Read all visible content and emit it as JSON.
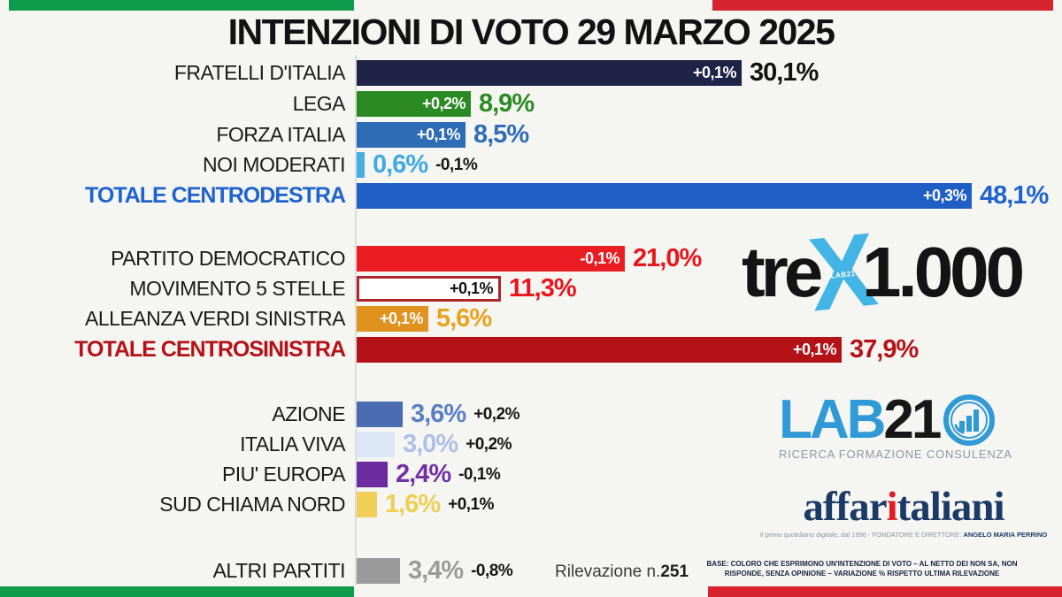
{
  "chart_data": {
    "type": "bar",
    "orientation": "horizontal",
    "unit": "%",
    "title": "INTENZIONI DI VOTO 29 MARZO 2025",
    "rows": [
      {
        "label": "FRATELLI D'ITALIA",
        "value": 30.1,
        "value_label": "30,1%",
        "delta_label": "+0,1%",
        "delta_position": "inside",
        "bar_color": "#1e2347",
        "value_color": "#121212",
        "label_color": "#1a1a1a",
        "delta_color": "#ffffff",
        "group": "centrodestra"
      },
      {
        "label": "LEGA",
        "value": 8.9,
        "value_label": "8,9%",
        "delta_label": "+0,2%",
        "delta_position": "inside",
        "bar_color": "#2b8a24",
        "value_color": "#2b8a24",
        "label_color": "#1a1a1a",
        "delta_color": "#ffffff",
        "group": "centrodestra"
      },
      {
        "label": "FORZA ITALIA",
        "value": 8.5,
        "value_label": "8,5%",
        "delta_label": "+0,1%",
        "delta_position": "inside",
        "bar_color": "#2e6db6",
        "value_color": "#2e6db6",
        "label_color": "#1a1a1a",
        "delta_color": "#ffffff",
        "group": "centrodestra"
      },
      {
        "label": "NOI MODERATI",
        "value": 0.6,
        "value_label": "0,6%",
        "delta_label": "-0,1%",
        "delta_position": "outside",
        "bar_color": "#45afe4",
        "value_color": "#3fa9e1",
        "label_color": "#1a1a1a",
        "delta_color": "#161616",
        "group": "centrodestra"
      },
      {
        "label": "TOTALE CENTRODESTRA",
        "value": 48.1,
        "value_label": "48,1%",
        "delta_label": "+0,3%",
        "delta_position": "inside",
        "bar_color": "#1f5fc5",
        "value_color": "#1f64cc",
        "label_color": "#1f64cc",
        "delta_color": "#ffffff",
        "group": "totale"
      },
      {
        "label": "PARTITO DEMOCRATICO",
        "value": 21.0,
        "value_label": "21,0%",
        "delta_label": "-0,1%",
        "delta_position": "inside",
        "bar_color": "#ec1c23",
        "value_color": "#e8151c",
        "label_color": "#1a1a1a",
        "delta_color": "#ffffff",
        "group": "centrosinistra"
      },
      {
        "label": "MOVIMENTO 5 STELLE",
        "value": 11.3,
        "value_label": "11,3%",
        "delta_label": "+0,1%",
        "delta_position": "inside",
        "bar_color": "#ffffff",
        "outline": "#b0242b",
        "value_color": "#e8151c",
        "label_color": "#1a1a1a",
        "delta_color": "#121212",
        "group": "centrosinistra"
      },
      {
        "label": "ALLEANZA VERDI SINISTRA",
        "value": 5.6,
        "value_label": "5,6%",
        "delta_label": "+0,1%",
        "delta_position": "inside",
        "bar_color": "#e0921e",
        "value_color": "#e8a31f",
        "label_color": "#1a1a1a",
        "delta_color": "#ffffff",
        "group": "centrosinistra"
      },
      {
        "label": "TOTALE CENTROSINISTRA",
        "value": 37.9,
        "value_label": "37,9%",
        "delta_label": "+0,1%",
        "delta_position": "inside",
        "bar_color": "#b51218",
        "value_color": "#b51218",
        "label_color": "#b51218",
        "delta_color": "#ffffff",
        "group": "totale"
      },
      {
        "label": "AZIONE",
        "value": 3.6,
        "value_label": "3,6%",
        "delta_label": "+0,2%",
        "delta_position": "outside",
        "bar_color": "#4a6cb3",
        "value_color": "#5b7fc4",
        "label_color": "#1a1a1a",
        "delta_color": "#161616",
        "group": "altri"
      },
      {
        "label": "ITALIA VIVA",
        "value": 3.0,
        "value_label": "3,0%",
        "delta_label": "+0,2%",
        "delta_position": "outside",
        "bar_color": "#dbe7f6",
        "value_color": "#aebfe8",
        "label_color": "#1a1a1a",
        "delta_color": "#161616",
        "group": "altri"
      },
      {
        "label": "PIU' EUROPA",
        "value": 2.4,
        "value_label": "2,4%",
        "delta_label": "-0,1%",
        "delta_position": "outside",
        "bar_color": "#6b2a9e",
        "value_color": "#7231a5",
        "label_color": "#1a1a1a",
        "delta_color": "#161616",
        "group": "altri"
      },
      {
        "label": "SUD CHIAMA NORD",
        "value": 1.6,
        "value_label": "1,6%",
        "delta_label": "+0,1%",
        "delta_position": "outside",
        "bar_color": "#f2cf56",
        "value_color": "#eecf55",
        "label_color": "#1a1a1a",
        "delta_color": "#161616",
        "group": "altri"
      },
      {
        "label": "ALTRI PARTITI",
        "value": 3.4,
        "value_label": "3,4%",
        "delta_label": "-0,8%",
        "delta_position": "outside",
        "bar_color": "#9b9b9b",
        "value_color": "#9b9b9b",
        "label_color": "#1a1a1a",
        "delta_color": "#161616",
        "group": "altri"
      }
    ]
  },
  "survey": {
    "prefix": "Rilevazione n.",
    "number": "251"
  },
  "footnote": {
    "line1": "BASE: COLORO CHE ESPRIMONO UN'INTENZIONE DI VOTO – AL NETTO DEI NON SA, NON",
    "line2": "RISPONDE, SENZA OPINIONE – VARIAZIONE % RISPETTO ULTIMA RILEVAZIONE"
  },
  "logos": {
    "trex": {
      "part1": "tre",
      "x": "X",
      "x_caption": "LAB21",
      "part2": "1.000",
      "accent_color": "#42b4e6"
    },
    "lab21": {
      "part1": "LAB",
      "part2": "21",
      "caption": "RICERCA FORMAZIONE CONSULENZA",
      "accent_color": "#2f9ad6"
    },
    "affaritaliani": {
      "part1": "affar",
      "accent": "i",
      "part2": "taliani",
      "tagline_prefix": "Il primo quotidiano digitale, dal 1996 - FONDATORE E DIRETTORE: ",
      "tagline_name": "ANGELO MARIA PERRINO",
      "accent_color": "#e01b22"
    }
  },
  "flag_colors": {
    "green": "#0f9b4b",
    "red": "#d6232e"
  }
}
